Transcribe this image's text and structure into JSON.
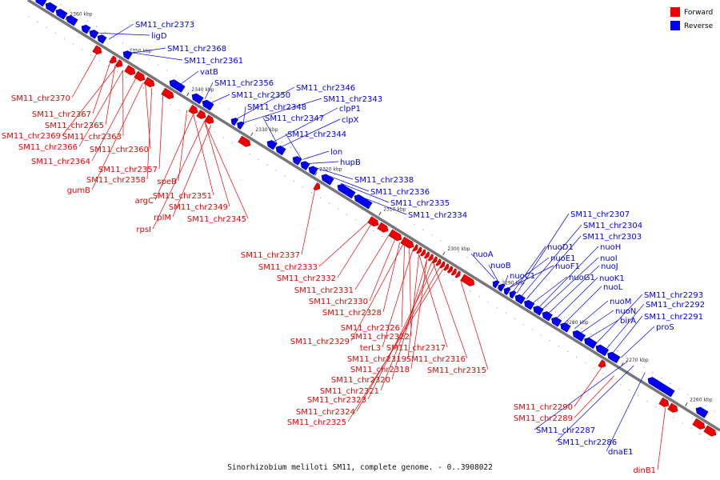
{
  "caption": "Sinorhizobium meliloti SM11, complete genome. - 0..3908022",
  "legend": [
    {
      "label": "Forward",
      "color": "#ee0000"
    },
    {
      "label": "Reverse",
      "color": "#0000ee"
    }
  ],
  "ticks": [
    "2360 kbp",
    "2350 kbp",
    "2340 kbp",
    "2330 kbp",
    "2320 kbp",
    "2310 kbp",
    "2300 kbp",
    "2290 kbp",
    "2280 kbp",
    "2270 kbp",
    "2260 kbp"
  ],
  "labels_reverse": [
    "SM11_chr2373",
    "ligD",
    "SM11_chr2368",
    "SM11_chr2361",
    "vatB",
    "SM11_chr2356",
    "SM11_chr2350",
    "SM11_chr2346",
    "SM11_chr2348",
    "SM11_chr2343",
    "clpP1",
    "SM11_chr2347",
    "clpX",
    "SM11_chr2344",
    "lon",
    "hupB",
    "SM11_chr2338",
    "SM11_chr2336",
    "SM11_chr2335",
    "SM11_chr2334",
    "SM11_chr2307",
    "SM11_chr2304",
    "SM11_chr2303",
    "nuoD1",
    "nuoE1",
    "nuoF1",
    "nuoH",
    "nuoI",
    "nuoJ",
    "nuoG1",
    "nuoK1",
    "nuoL",
    "nuoA",
    "nuoB",
    "nuoC1",
    "nuoM",
    "nuoN",
    "birA",
    "SM11_chr2293",
    "SM11_chr2292",
    "SM11_chr2291",
    "proS",
    "SM11_chr2287",
    "SM11_chr2286",
    "dnaE1"
  ],
  "labels_forward": [
    "SM11_chr2370",
    "SM11_chr2367",
    "SM11_chr2365",
    "SM11_chr2369",
    "SM11_chr2363",
    "SM11_chr2366",
    "SM11_chr2360",
    "SM11_chr2364",
    "SM11_chr2357",
    "SM11_chr2358",
    "speB",
    "gumB",
    "SM11_chr2351",
    "argC",
    "SM11_chr2349",
    "rplM",
    "SM11_chr2345",
    "rpsI",
    "SM11_chr2337",
    "SM11_chr2333",
    "SM11_chr2332",
    "SM11_chr2331",
    "SM11_chr2330",
    "SM11_chr2328",
    "SM11_chr2326",
    "SM11_chr2322",
    "SM11_chr2329",
    "terL3",
    "SM11_chr2317",
    "SM11_chr2319",
    "SM11_chr2316",
    "SM11_chr2318",
    "SM11_chr2315",
    "SM11_chr2320",
    "SM11_chr2321",
    "SM11_chr2323",
    "SM11_chr2324",
    "SM11_chr2325",
    "SM11_chr2290",
    "SM11_chr2289",
    "dinB1"
  ]
}
